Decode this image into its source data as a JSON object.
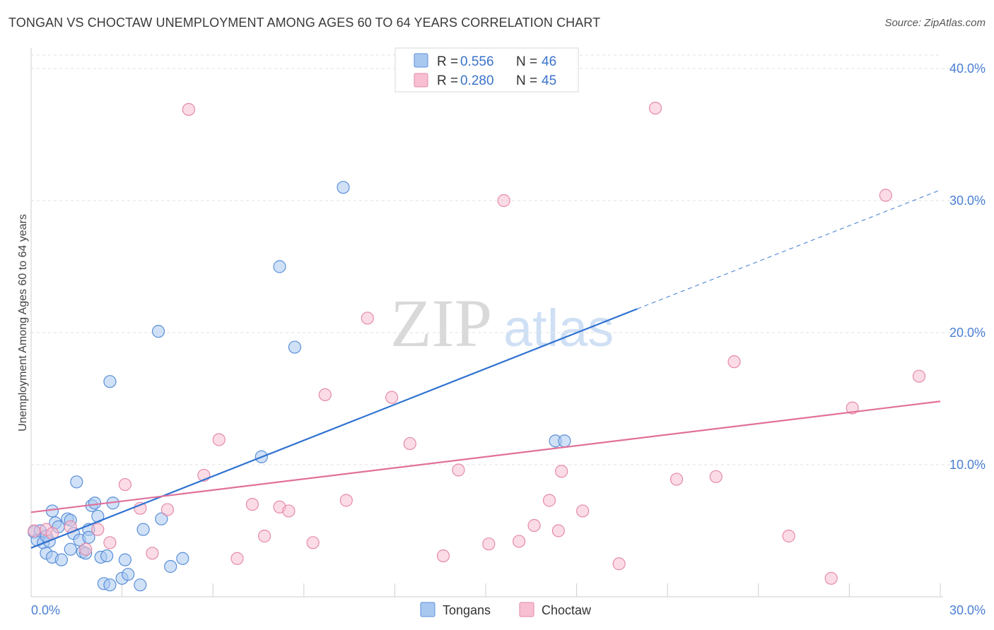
{
  "header": {
    "title": "TONGAN VS CHOCTAW UNEMPLOYMENT AMONG AGES 60 TO 64 YEARS CORRELATION CHART",
    "source": "Source: ZipAtlas.com"
  },
  "watermark": {
    "zip": "ZIP",
    "atlas": "atlas"
  },
  "colors": {
    "tongan_fill": "#a9c8f0",
    "tongan_stroke": "#5a8fd8",
    "tongan_line": "#2f72d0",
    "choctaw_fill": "#f7bfd1",
    "choctaw_stroke": "#e58aa9",
    "choctaw_line": "#e0709a"
  },
  "chart_data": {
    "type": "scatter",
    "title": "TONGAN VS CHOCTAW UNEMPLOYMENT AMONG AGES 60 TO 64 YEARS CORRELATION CHART",
    "xlabel": "",
    "ylabel": "Unemployment Among Ages 60 to 64 years",
    "xlim": [
      0,
      30
    ],
    "ylim": [
      0,
      40
    ],
    "x_tick_labels": [
      "0.0%",
      "30.0%"
    ],
    "y_ticks": [
      10,
      20,
      30,
      40
    ],
    "y_tick_labels": [
      "10.0%",
      "20.0%",
      "30.0%",
      "40.0%"
    ],
    "grid": true,
    "legend": [
      {
        "r_label": "R =",
        "r_value": "0.556",
        "n_label": "N =",
        "n_value": "46"
      },
      {
        "r_label": "R =",
        "r_value": "0.280",
        "n_label": "N =",
        "n_value": "45"
      }
    ],
    "series": [
      {
        "name": "Tongans",
        "trend": {
          "x0": 0,
          "y0": 3.7,
          "x1": 20,
          "y1": 21.8,
          "dash_x1": 30,
          "dash_y1": 30.8
        },
        "points": [
          [
            0.1,
            4.9
          ],
          [
            0.2,
            4.3
          ],
          [
            0.3,
            5.0
          ],
          [
            0.4,
            4.1
          ],
          [
            0.5,
            3.3
          ],
          [
            0.6,
            4.2
          ],
          [
            0.7,
            6.5
          ],
          [
            0.7,
            3.0
          ],
          [
            0.8,
            5.6
          ],
          [
            0.9,
            5.3
          ],
          [
            1.0,
            2.8
          ],
          [
            1.2,
            5.9
          ],
          [
            1.3,
            3.6
          ],
          [
            1.4,
            4.8
          ],
          [
            1.5,
            8.7
          ],
          [
            1.6,
            4.3
          ],
          [
            1.7,
            3.4
          ],
          [
            1.8,
            3.3
          ],
          [
            1.9,
            5.1
          ],
          [
            1.9,
            4.5
          ],
          [
            2.0,
            6.9
          ],
          [
            2.1,
            7.1
          ],
          [
            2.3,
            3.0
          ],
          [
            2.4,
            1.0
          ],
          [
            2.5,
            3.1
          ],
          [
            2.6,
            0.9
          ],
          [
            2.6,
            16.3
          ],
          [
            2.7,
            7.1
          ],
          [
            3.0,
            1.4
          ],
          [
            3.1,
            2.8
          ],
          [
            3.2,
            1.7
          ],
          [
            3.6,
            0.9
          ],
          [
            3.7,
            5.1
          ],
          [
            4.2,
            20.1
          ],
          [
            4.3,
            5.9
          ],
          [
            4.6,
            2.3
          ],
          [
            5.0,
            2.9
          ],
          [
            7.6,
            10.6
          ],
          [
            8.2,
            25.0
          ],
          [
            8.7,
            18.9
          ],
          [
            10.3,
            31.0
          ],
          [
            17.3,
            11.8
          ],
          [
            17.6,
            11.8
          ],
          [
            1.3,
            5.8
          ],
          [
            0.5,
            4.6
          ],
          [
            2.2,
            6.1
          ]
        ]
      },
      {
        "name": "Choctaw",
        "trend": {
          "x0": 0,
          "y0": 6.4,
          "x1": 30,
          "y1": 14.8
        },
        "points": [
          [
            0.1,
            5.0
          ],
          [
            0.5,
            5.1
          ],
          [
            0.7,
            4.8
          ],
          [
            1.3,
            5.3
          ],
          [
            1.8,
            3.6
          ],
          [
            2.2,
            5.1
          ],
          [
            2.6,
            4.1
          ],
          [
            3.1,
            8.5
          ],
          [
            3.6,
            6.7
          ],
          [
            4.0,
            3.3
          ],
          [
            4.5,
            6.6
          ],
          [
            5.2,
            36.9
          ],
          [
            5.7,
            9.2
          ],
          [
            6.2,
            11.9
          ],
          [
            6.8,
            2.9
          ],
          [
            7.3,
            7.0
          ],
          [
            7.7,
            4.6
          ],
          [
            8.2,
            6.8
          ],
          [
            8.5,
            6.5
          ],
          [
            9.3,
            4.1
          ],
          [
            9.7,
            15.3
          ],
          [
            10.4,
            7.3
          ],
          [
            11.1,
            21.1
          ],
          [
            11.9,
            15.1
          ],
          [
            12.5,
            11.6
          ],
          [
            13.6,
            3.1
          ],
          [
            14.1,
            9.6
          ],
          [
            15.1,
            4.0
          ],
          [
            15.6,
            30.0
          ],
          [
            16.1,
            4.2
          ],
          [
            16.6,
            5.4
          ],
          [
            17.1,
            7.3
          ],
          [
            17.4,
            5.0
          ],
          [
            17.5,
            9.5
          ],
          [
            18.2,
            6.5
          ],
          [
            19.4,
            2.5
          ],
          [
            20.6,
            37.0
          ],
          [
            21.3,
            8.9
          ],
          [
            22.6,
            9.1
          ],
          [
            23.2,
            17.8
          ],
          [
            25.0,
            4.6
          ],
          [
            26.4,
            1.4
          ],
          [
            27.1,
            14.3
          ],
          [
            28.2,
            30.4
          ],
          [
            29.3,
            16.7
          ]
        ]
      }
    ]
  },
  "bottom_legend": {
    "tongans": "Tongans",
    "choctaw": "Choctaw"
  }
}
